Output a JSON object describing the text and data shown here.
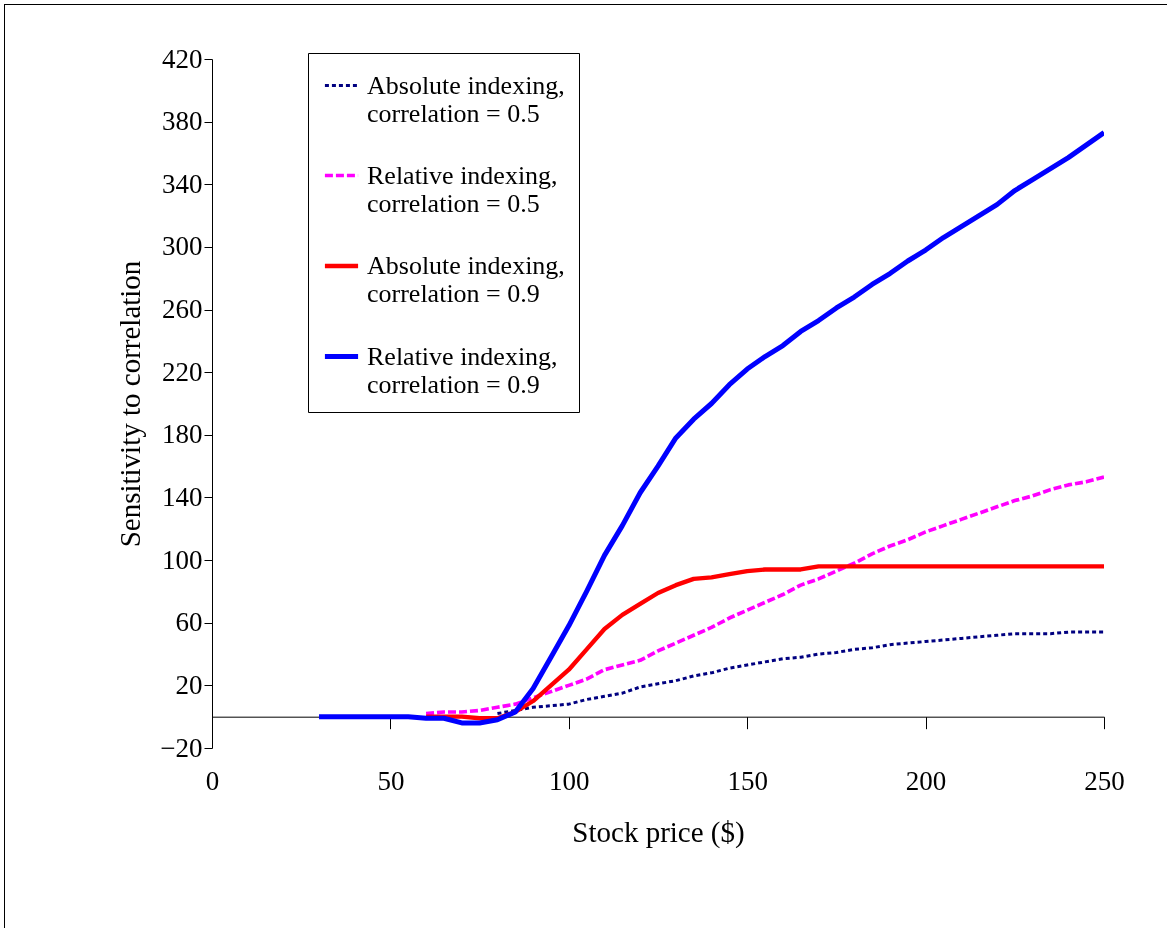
{
  "chart_data": {
    "type": "line",
    "xlabel": "Stock price ($)",
    "ylabel": "Sensitivity to correlation",
    "x": [
      30,
      35,
      40,
      45,
      50,
      55,
      60,
      65,
      70,
      75,
      80,
      85,
      90,
      95,
      100,
      105,
      110,
      115,
      120,
      125,
      130,
      135,
      140,
      145,
      150,
      155,
      160,
      165,
      170,
      175,
      180,
      185,
      190,
      195,
      200,
      205,
      210,
      215,
      220,
      225,
      230,
      235,
      240,
      245,
      250
    ],
    "series": [
      {
        "name": "Absolute indexing, correlation = 0.5",
        "color": "#000080",
        "line_style": "dotted",
        "values": [
          null,
          null,
          null,
          null,
          null,
          null,
          null,
          null,
          null,
          null,
          2,
          4,
          6,
          7,
          8,
          11,
          13,
          15,
          19,
          21,
          23,
          26,
          28,
          31,
          33,
          35,
          37,
          38,
          40,
          41,
          43,
          44,
          46,
          47,
          48,
          49,
          50,
          51,
          52,
          53,
          53,
          53,
          54,
          54,
          54
        ]
      },
      {
        "name": "Relative indexing, correlation = 0.5",
        "color": "#ff00ff",
        "line_style": "dashed",
        "values": [
          null,
          null,
          null,
          null,
          null,
          null,
          2,
          3,
          3,
          4,
          6,
          8,
          12,
          16,
          20,
          24,
          30,
          33,
          36,
          42,
          47,
          52,
          57,
          63,
          68,
          73,
          78,
          84,
          88,
          93,
          98,
          104,
          109,
          113,
          118,
          122,
          126,
          130,
          134,
          138,
          141,
          145,
          148,
          150,
          153
        ]
      },
      {
        "name": "Absolute indexing, correlation = 0.9",
        "color": "#ff0000",
        "line_style": "solid",
        "values": [
          null,
          null,
          null,
          null,
          null,
          null,
          0,
          0,
          0,
          -1,
          -1,
          3,
          10,
          20,
          30,
          43,
          56,
          65,
          72,
          79,
          84,
          88,
          89,
          91,
          93,
          94,
          94,
          94,
          96,
          96,
          96,
          96,
          96,
          96,
          96,
          96,
          96,
          96,
          96,
          96,
          96,
          96,
          96,
          96,
          96
        ]
      },
      {
        "name": "Relative indexing, correlation = 0.9",
        "color": "#0000ff",
        "line_style": "solid",
        "values": [
          0,
          0,
          0,
          0,
          0,
          0,
          -1,
          -1,
          -4,
          -4,
          -2,
          3,
          18,
          38,
          58,
          80,
          103,
          122,
          143,
          160,
          178,
          190,
          200,
          212,
          222,
          230,
          237,
          246,
          253,
          261,
          268,
          276,
          283,
          291,
          298,
          306,
          313,
          320,
          327,
          336,
          343,
          350,
          357,
          365,
          373
        ]
      }
    ],
    "xlim": [
      0,
      250
    ],
    "xticks": [
      0,
      50,
      100,
      150,
      200,
      250
    ],
    "ylim": [
      -20,
      420
    ],
    "yticks": [
      -20,
      20,
      60,
      100,
      140,
      180,
      220,
      260,
      300,
      340,
      380,
      420
    ],
    "grid": false,
    "legend": "top left"
  }
}
